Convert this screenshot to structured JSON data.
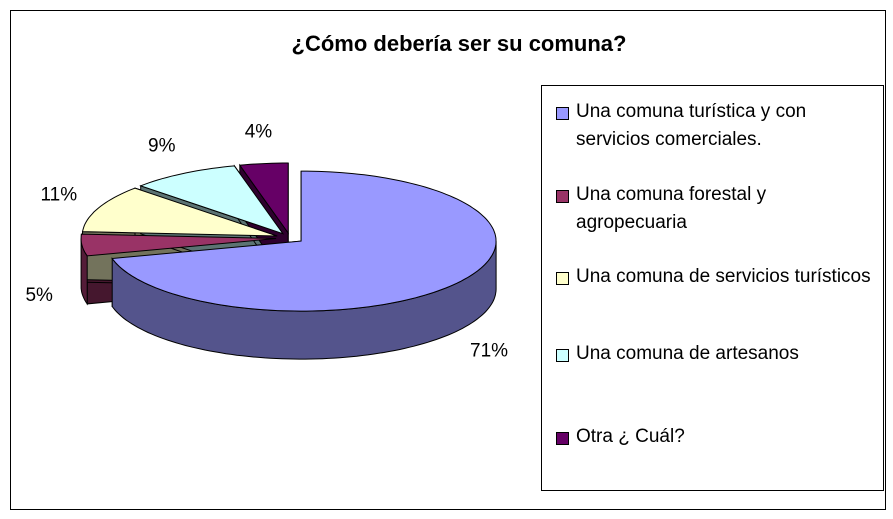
{
  "chart_data": {
    "type": "pie",
    "title": "¿Cómo debería ser su  comuna?",
    "categories": [
      "Una comuna turística y con servicios comerciales.",
      "Una comuna forestal y agropecuaria",
      "Una comuna de servicios turísticos",
      "Una comuna de  artesanos",
      "Otra  ¿ Cuál?"
    ],
    "values": [
      71,
      5,
      11,
      9,
      4
    ],
    "value_labels": [
      "71%",
      "5%",
      "11%",
      "9%",
      "4%"
    ],
    "colors": [
      "#9999ff",
      "#993366",
      "#ffffcc",
      "#ccffff",
      "#660066"
    ],
    "legend": "right"
  }
}
